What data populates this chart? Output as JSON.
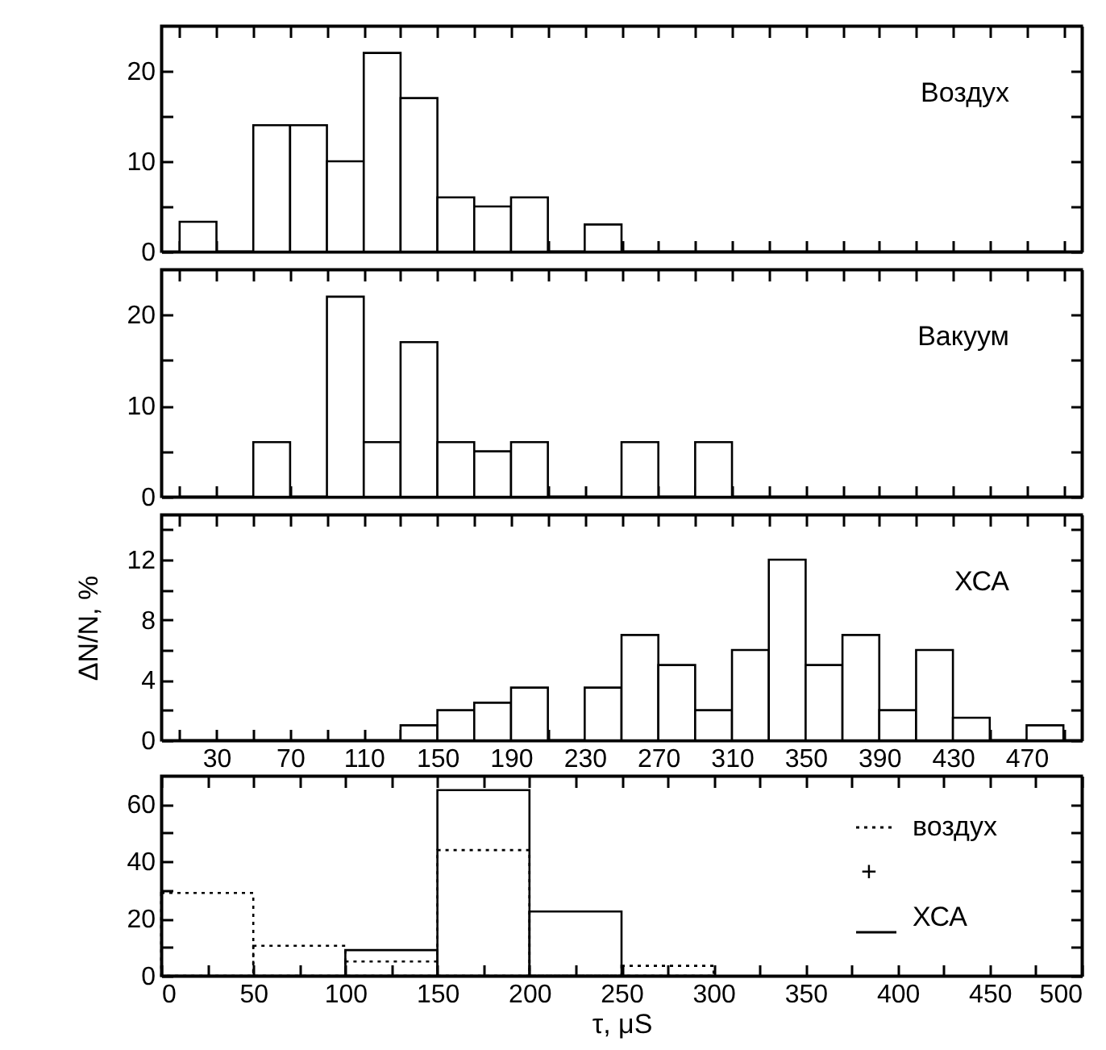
{
  "chart_data": [
    {
      "type": "histogram",
      "annotations": [
        "Воздух"
      ],
      "color": "#000000",
      "bins": [
        10,
        30,
        50,
        70,
        90,
        110,
        130,
        150,
        170,
        190,
        210,
        230,
        250,
        270,
        290,
        310,
        330,
        350,
        370,
        390,
        410,
        430,
        450,
        470,
        490
      ],
      "values": [
        3.3,
        0,
        14,
        14,
        10,
        22,
        17,
        6,
        5,
        6,
        0,
        3,
        0,
        0,
        0,
        0,
        0,
        0,
        0,
        0,
        0,
        0,
        0,
        0
      ],
      "xlim": [
        0,
        500
      ],
      "xticks": [
        {
          "value": 10,
          "label": null
        },
        30,
        {
          "value": 50,
          "label": null
        },
        70,
        {
          "value": 90,
          "label": null
        },
        110,
        {
          "value": 130,
          "label": null
        },
        150,
        {
          "value": 170,
          "label": null
        },
        190,
        {
          "value": 210,
          "label": null
        },
        230,
        {
          "value": 250,
          "label": null
        },
        270,
        {
          "value": 290,
          "label": null
        },
        310,
        {
          "value": 330,
          "label": null
        },
        350,
        {
          "value": 370,
          "label": null
        },
        390,
        {
          "value": 410,
          "label": null
        },
        430,
        {
          "value": 450,
          "label": null
        },
        470,
        {
          "value": 490,
          "label": null
        }
      ],
      "ylim": [
        0,
        25
      ],
      "yticks": [
        0,
        {
          "value": 5,
          "label": null
        },
        10,
        {
          "value": 15,
          "label": null
        },
        20
      ],
      "tick_labels": "y"
    },
    {
      "type": "histogram",
      "annotations": [
        "Вакуум"
      ],
      "color": "#000000",
      "bins": [
        10,
        30,
        50,
        70,
        90,
        110,
        130,
        150,
        170,
        190,
        210,
        230,
        250,
        270,
        290,
        310,
        330,
        350,
        370,
        390,
        410,
        430,
        450,
        470,
        490
      ],
      "values": [
        0,
        0,
        6,
        0,
        22,
        6,
        17,
        6,
        5,
        6,
        0,
        0,
        6,
        0,
        6,
        0,
        0,
        0,
        0,
        0,
        0,
        0,
        0,
        0
      ],
      "xlim": [
        0,
        500
      ],
      "xticks": [
        {
          "value": 10,
          "label": null
        },
        30,
        {
          "value": 50,
          "label": null
        },
        70,
        {
          "value": 90,
          "label": null
        },
        110,
        {
          "value": 130,
          "label": null
        },
        150,
        {
          "value": 170,
          "label": null
        },
        190,
        {
          "value": 210,
          "label": null
        },
        230,
        {
          "value": 250,
          "label": null
        },
        270,
        {
          "value": 290,
          "label": null
        },
        310,
        {
          "value": 330,
          "label": null
        },
        350,
        {
          "value": 370,
          "label": null
        },
        390,
        {
          "value": 410,
          "label": null
        },
        430,
        {
          "value": 450,
          "label": null
        },
        470,
        {
          "value": 490,
          "label": null
        }
      ],
      "ylim": [
        0,
        25
      ],
      "yticks": [
        0,
        {
          "value": 5,
          "label": null
        },
        10,
        {
          "value": 15,
          "label": null
        },
        20
      ],
      "tick_labels": "y"
    },
    {
      "type": "histogram",
      "annotations": [
        "ХСА"
      ],
      "color": "#000000",
      "ylabel": "ΔN/N, %",
      "bins": [
        10,
        30,
        50,
        70,
        90,
        110,
        130,
        150,
        170,
        190,
        210,
        230,
        250,
        270,
        290,
        310,
        330,
        350,
        370,
        390,
        410,
        430,
        450,
        470,
        490
      ],
      "values": [
        0,
        0,
        0,
        0,
        0,
        0,
        1,
        2,
        2.5,
        3.5,
        0,
        3.5,
        7,
        5,
        2,
        6,
        12,
        5,
        7,
        2,
        6,
        1.5,
        0,
        1
      ],
      "xlim": [
        0,
        500
      ],
      "xticks": [
        {
          "value": 10,
          "label": null
        },
        30,
        {
          "value": 50,
          "label": null
        },
        70,
        {
          "value": 90,
          "label": null
        },
        110,
        {
          "value": 130,
          "label": null
        },
        150,
        {
          "value": 170,
          "label": null
        },
        190,
        {
          "value": 210,
          "label": null
        },
        230,
        {
          "value": 250,
          "label": null
        },
        270,
        {
          "value": 290,
          "label": null
        },
        310,
        {
          "value": 330,
          "label": null
        },
        350,
        {
          "value": 370,
          "label": null
        },
        390,
        {
          "value": 410,
          "label": null
        },
        430,
        {
          "value": 450,
          "label": null
        },
        470,
        {
          "value": 490,
          "label": null
        }
      ],
      "ylim": [
        0,
        15
      ],
      "yticks": [
        0,
        {
          "value": 2,
          "label": null
        },
        4,
        {
          "value": 6,
          "label": null
        },
        8,
        {
          "value": 10,
          "label": null
        },
        12,
        {
          "value": 14,
          "label": null
        }
      ]
    },
    {
      "type": "histogram",
      "xlabel": "τ, μS",
      "annotations": [
        "+"
      ],
      "legend": "top right",
      "bins": [
        0,
        50,
        100,
        150,
        200,
        250,
        300
      ],
      "series": [
        {
          "name": "воздух",
          "color": "#000000",
          "line_style": "dotted",
          "values": [
            29,
            10.5,
            5,
            44,
            0,
            3.5
          ]
        },
        {
          "name": "ХСА",
          "color": "#000000",
          "line_style": "solid",
          "values": [
            0,
            0,
            9,
            65,
            22.5,
            0
          ]
        }
      ],
      "xlim": [
        0,
        500
      ],
      "xticks": [
        0,
        {
          "value": 25,
          "label": null
        },
        50,
        {
          "value": 75,
          "label": null
        },
        100,
        {
          "value": 125,
          "label": null
        },
        150,
        {
          "value": 175,
          "label": null
        },
        200,
        {
          "value": 225,
          "label": null
        },
        250,
        {
          "value": 275,
          "label": null
        },
        300,
        {
          "value": 325,
          "label": null
        },
        350,
        {
          "value": 375,
          "label": null
        },
        400,
        {
          "value": 425,
          "label": null
        },
        450,
        {
          "value": 475,
          "label": null
        },
        500
      ],
      "ylim": [
        0,
        70
      ],
      "yticks": [
        0,
        {
          "value": 10,
          "label": null
        },
        20,
        {
          "value": 30,
          "label": null
        },
        40,
        {
          "value": 50,
          "label": null
        },
        60
      ]
    }
  ]
}
